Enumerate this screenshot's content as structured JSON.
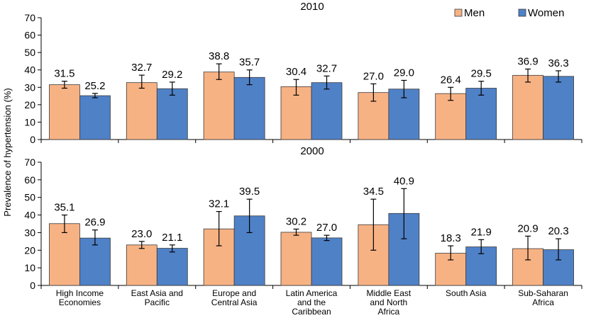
{
  "chart_data": {
    "type": "bar",
    "ylabel": "Prevalence of hypertension (%)",
    "legend": {
      "position": "top-right",
      "entries": [
        "Men",
        "Women"
      ]
    },
    "colors": {
      "men": "#F7B284",
      "women": "#4F81C7"
    },
    "categories": [
      "High Income Economies",
      "East Asia and Pacific",
      "Europe and Central Asia",
      "Latin America and the Caribbean",
      "Middle East and North Africa",
      "South Asia",
      "Sub-Saharan Africa"
    ],
    "category_lines": [
      [
        "High Income",
        "Economies"
      ],
      [
        "East Asia and",
        "Pacific"
      ],
      [
        "Europe and",
        "Central Asia"
      ],
      [
        "Latin America",
        "and the",
        "Caribbean"
      ],
      [
        "Middle East",
        "and North",
        "Africa"
      ],
      [
        "South Asia"
      ],
      [
        "Sub-Saharan",
        "Africa"
      ]
    ],
    "panels": [
      {
        "title": "2010",
        "ylim": [
          0,
          70
        ],
        "yticks": [
          0,
          10,
          20,
          30,
          40,
          50,
          60,
          70
        ],
        "series": [
          {
            "name": "Men",
            "values": [
              31.5,
              32.7,
              38.8,
              30.4,
              27.0,
              26.4,
              36.9
            ],
            "labels": [
              "31.5",
              "32.7",
              "38.8",
              "30.4",
              "27.0",
              "26.4",
              "36.9"
            ],
            "error_low": [
              29.5,
              29.5,
              34.5,
              25.5,
              22.0,
              22.5,
              33.0
            ],
            "error_high": [
              33.5,
              37.0,
              43.5,
              34.5,
              32.0,
              30.0,
              40.5
            ]
          },
          {
            "name": "Women",
            "values": [
              25.2,
              29.2,
              35.7,
              32.7,
              29.0,
              29.5,
              36.3
            ],
            "labels": [
              "25.2",
              "29.2",
              "35.7",
              "32.7",
              "29.0",
              "29.5",
              "36.3"
            ],
            "error_low": [
              24.0,
              25.5,
              31.5,
              29.0,
              24.0,
              25.5,
              33.0
            ],
            "error_high": [
              26.5,
              33.0,
              40.0,
              36.5,
              34.0,
              33.5,
              39.5
            ]
          }
        ]
      },
      {
        "title": "2000",
        "ylim": [
          0,
          70
        ],
        "yticks": [
          0,
          10,
          20,
          30,
          40,
          50,
          60,
          70
        ],
        "series": [
          {
            "name": "Men",
            "values": [
              35.1,
              23.0,
              32.1,
              30.2,
              34.5,
              18.3,
              20.9
            ],
            "labels": [
              "35.1",
              "23.0",
              "32.1",
              "30.2",
              "34.5",
              "18.3",
              "20.9"
            ],
            "error_low": [
              30.0,
              21.0,
              22.5,
              28.5,
              20.0,
              14.5,
              14.5
            ],
            "error_high": [
              40.0,
              25.0,
              42.0,
              32.0,
              49.0,
              22.5,
              28.0
            ]
          },
          {
            "name": "Women",
            "values": [
              26.9,
              21.1,
              39.5,
              27.0,
              40.9,
              21.9,
              20.3
            ],
            "labels": [
              "26.9",
              "21.1",
              "39.5",
              "27.0",
              "40.9",
              "21.9",
              "20.3"
            ],
            "error_low": [
              23.0,
              19.0,
              30.0,
              25.5,
              26.5,
              18.0,
              14.5
            ],
            "error_high": [
              31.5,
              23.0,
              49.0,
              28.5,
              55.0,
              26.0,
              26.5
            ]
          }
        ]
      }
    ]
  }
}
